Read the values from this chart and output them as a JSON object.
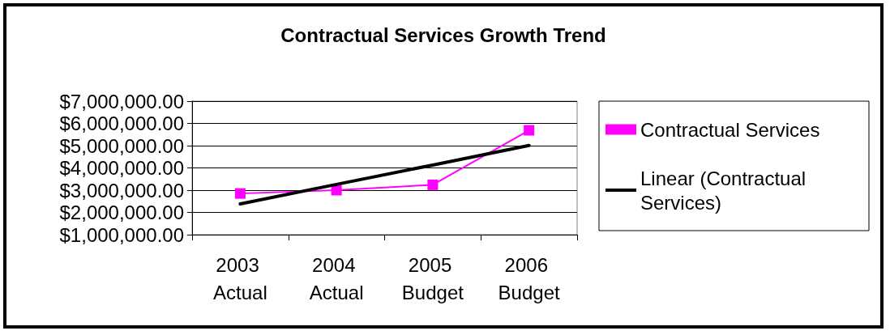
{
  "chart_data": {
    "type": "line",
    "title": "Contractual Services Growth Trend",
    "categories": [
      "2003 Actual",
      "2004 Actual",
      "2005 Budget",
      "2006 Budget"
    ],
    "series": [
      {
        "name": "Contractual Services",
        "color": "#ff00ff",
        "marker": "square",
        "values": [
          2850000,
          3000000,
          3240000,
          5690000
        ]
      },
      {
        "name": "Linear (Contractual Services)",
        "color": "#000000",
        "marker": "none",
        "values": [
          2380000,
          3260000,
          4130000,
          5010000
        ]
      }
    ],
    "ylim": [
      1000000,
      7000000
    ],
    "yticks": [
      {
        "value": 1000000,
        "label": "$1,000,000.00"
      },
      {
        "value": 2000000,
        "label": "$2,000,000.00"
      },
      {
        "value": 3000000,
        "label": "$3,000,000.00"
      },
      {
        "value": 4000000,
        "label": "$4,000,000.00"
      },
      {
        "value": 5000000,
        "label": "$5,000,000.00"
      },
      {
        "value": 6000000,
        "label": "$6,000,000.00"
      },
      {
        "value": 7000000,
        "label": "$7,000,000.00"
      }
    ],
    "grid": "y",
    "legend": "right",
    "line_style": "solid"
  }
}
